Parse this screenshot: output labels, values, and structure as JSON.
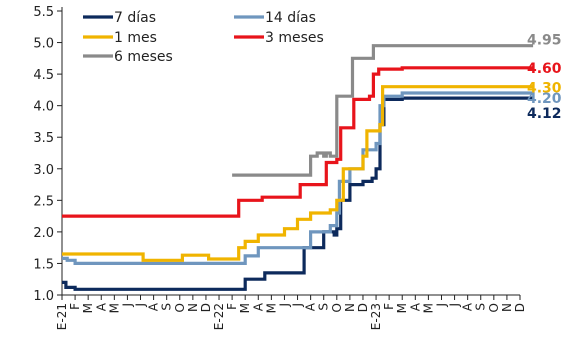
{
  "chart_data": {
    "type": "line",
    "title": "",
    "xlabel": "",
    "ylabel": "",
    "ylim": [
      1.0,
      5.5
    ],
    "yticks": [
      "1.0",
      "1.5",
      "2.0",
      "2.5",
      "3.0",
      "3.5",
      "4.0",
      "4.5",
      "5.0",
      "5.5"
    ],
    "x_count": 36,
    "x_tick_labels": [
      "E-21",
      "F",
      "M",
      "A",
      "M",
      "J",
      "J",
      "A",
      "S",
      "O",
      "N",
      "D",
      "E-22",
      "F",
      "M",
      "A",
      "M",
      "J",
      "J",
      "A",
      "S",
      "O",
      "N",
      "D",
      "E-23",
      "F",
      "M",
      "A",
      "M",
      "J",
      "J",
      "A",
      "S",
      "O",
      "N",
      "D"
    ],
    "grid": false,
    "legend_position": "top-left",
    "series": [
      {
        "name": "7 días",
        "color": "#0d2a5c",
        "end_label": "4.12",
        "points": [
          [
            0,
            1.2
          ],
          [
            0.3,
            1.12
          ],
          [
            1,
            1.09
          ],
          [
            13.3,
            1.09
          ],
          [
            14,
            1.25
          ],
          [
            15.5,
            1.35
          ],
          [
            18.2,
            1.35
          ],
          [
            18.5,
            1.75
          ],
          [
            19.8,
            1.75
          ],
          [
            20,
            2.0
          ],
          [
            20.6,
            2.0
          ],
          [
            20.8,
            1.95
          ],
          [
            21,
            2.05
          ],
          [
            21.3,
            2.5
          ],
          [
            22,
            2.75
          ],
          [
            23,
            2.8
          ],
          [
            23.7,
            2.85
          ],
          [
            24,
            3.0
          ],
          [
            24.3,
            3.7
          ],
          [
            24.6,
            4.1
          ],
          [
            26,
            4.12
          ],
          [
            36,
            4.12
          ]
        ]
      },
      {
        "name": "14 días",
        "color": "#6f96be",
        "end_label": "4.20",
        "points": [
          [
            0,
            1.58
          ],
          [
            0.4,
            1.55
          ],
          [
            1,
            1.5
          ],
          [
            12,
            1.5
          ],
          [
            13,
            1.5
          ],
          [
            14,
            1.62
          ],
          [
            15,
            1.75
          ],
          [
            18,
            1.75
          ],
          [
            19,
            2.0
          ],
          [
            20.5,
            2.1
          ],
          [
            21,
            2.3
          ],
          [
            21.2,
            2.8
          ],
          [
            22,
            3.0
          ],
          [
            23,
            3.3
          ],
          [
            24,
            3.4
          ],
          [
            24.3,
            4.0
          ],
          [
            24.6,
            4.15
          ],
          [
            26,
            4.2
          ],
          [
            36,
            4.2
          ]
        ]
      },
      {
        "name": "1 mes",
        "color": "#f0b400",
        "end_label": "4.30",
        "points": [
          [
            0,
            1.65
          ],
          [
            6,
            1.65
          ],
          [
            6.2,
            1.55
          ],
          [
            9,
            1.55
          ],
          [
            9.2,
            1.63
          ],
          [
            11,
            1.63
          ],
          [
            11.2,
            1.57
          ],
          [
            13,
            1.57
          ],
          [
            13.5,
            1.75
          ],
          [
            14,
            1.85
          ],
          [
            15,
            1.95
          ],
          [
            17,
            2.05
          ],
          [
            18,
            2.2
          ],
          [
            19,
            2.3
          ],
          [
            20.5,
            2.35
          ],
          [
            21,
            2.5
          ],
          [
            21.5,
            3.0
          ],
          [
            23,
            3.2
          ],
          [
            23.3,
            3.6
          ],
          [
            24.3,
            3.7
          ],
          [
            24.5,
            4.3
          ],
          [
            36,
            4.3
          ]
        ]
      },
      {
        "name": "3 meses",
        "color": "#e8141b",
        "end_label": "4.60",
        "points": [
          [
            0,
            2.25
          ],
          [
            13.3,
            2.25
          ],
          [
            13.5,
            2.5
          ],
          [
            15,
            2.5
          ],
          [
            15.3,
            2.55
          ],
          [
            18,
            2.55
          ],
          [
            18.2,
            2.75
          ],
          [
            20,
            2.75
          ],
          [
            20.2,
            3.1
          ],
          [
            21,
            3.15
          ],
          [
            21.3,
            3.65
          ],
          [
            22,
            3.65
          ],
          [
            22.3,
            4.1
          ],
          [
            23.5,
            4.15
          ],
          [
            23.8,
            4.5
          ],
          [
            24.2,
            4.58
          ],
          [
            26,
            4.6
          ],
          [
            36,
            4.6
          ]
        ]
      },
      {
        "name": "6 meses",
        "color": "#8a8a8a",
        "end_label": "4.95",
        "points": [
          [
            13,
            2.9
          ],
          [
            18.5,
            2.9
          ],
          [
            19,
            3.2
          ],
          [
            19.5,
            3.25
          ],
          [
            20,
            3.2
          ],
          [
            20.2,
            3.25
          ],
          [
            20.5,
            3.2
          ],
          [
            21,
            4.15
          ],
          [
            22,
            4.15
          ],
          [
            22.2,
            4.75
          ],
          [
            23.5,
            4.75
          ],
          [
            23.8,
            4.95
          ],
          [
            36,
            4.95
          ]
        ]
      }
    ]
  }
}
